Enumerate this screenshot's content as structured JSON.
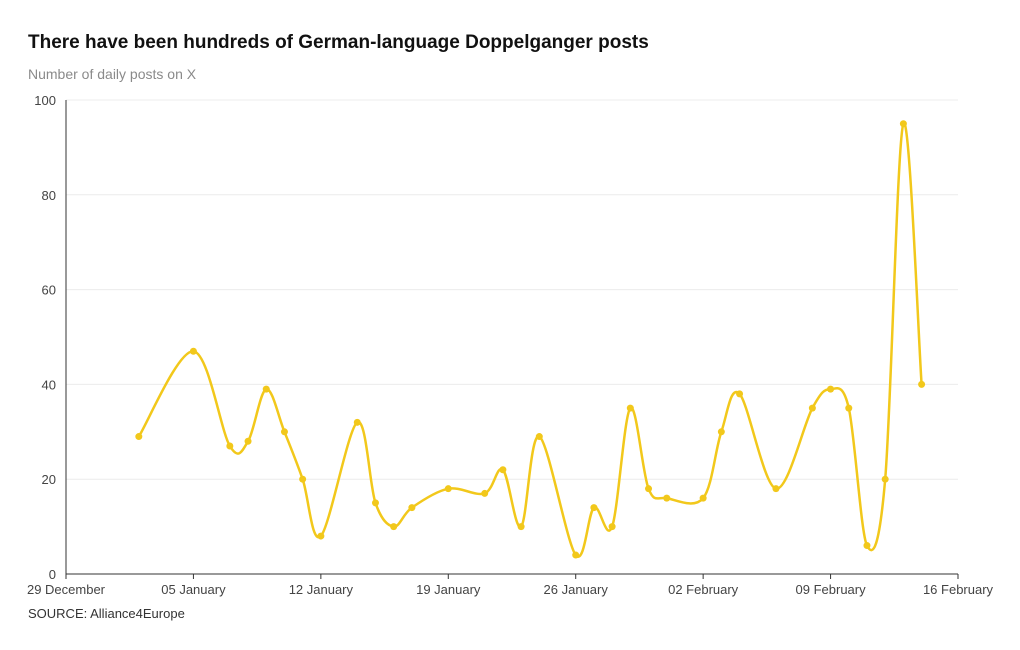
{
  "title": "There have been hundreds of German-language Doppelganger posts",
  "subtitle": "Number of daily posts on X",
  "source": "SOURCE: Alliance4Europe",
  "colors": {
    "line": "#f2c81b",
    "grid": "#ececec",
    "axis": "#333333"
  },
  "chart_data": {
    "type": "line",
    "title": "There have been hundreds of German-language Doppelganger posts",
    "ylabel": "Number of daily posts on X",
    "xlabel": "",
    "ylim": [
      0,
      100
    ],
    "yticks": [
      0,
      20,
      40,
      60,
      80,
      100
    ],
    "xlim": [
      "2023-12-29",
      "2024-02-16"
    ],
    "xticks": [
      {
        "date": "2023-12-29",
        "label": "29 December"
      },
      {
        "date": "2024-01-05",
        "label": "05 January"
      },
      {
        "date": "2024-01-12",
        "label": "12 January"
      },
      {
        "date": "2024-01-19",
        "label": "19 January"
      },
      {
        "date": "2024-01-26",
        "label": "26 January"
      },
      {
        "date": "2024-02-02",
        "label": "02 February"
      },
      {
        "date": "2024-02-09",
        "label": "09 February"
      },
      {
        "date": "2024-02-16",
        "label": "16 February"
      }
    ],
    "grid": true,
    "series": [
      {
        "points": [
          {
            "x": "2024-01-02",
            "y": 29
          },
          {
            "x": "2024-01-05",
            "y": 47
          },
          {
            "x": "2024-01-07",
            "y": 27
          },
          {
            "x": "2024-01-08",
            "y": 28
          },
          {
            "x": "2024-01-09",
            "y": 39
          },
          {
            "x": "2024-01-10",
            "y": 30
          },
          {
            "x": "2024-01-11",
            "y": 20
          },
          {
            "x": "2024-01-12",
            "y": 8
          },
          {
            "x": "2024-01-14",
            "y": 32
          },
          {
            "x": "2024-01-15",
            "y": 15
          },
          {
            "x": "2024-01-16",
            "y": 10
          },
          {
            "x": "2024-01-17",
            "y": 14
          },
          {
            "x": "2024-01-19",
            "y": 18
          },
          {
            "x": "2024-01-21",
            "y": 17
          },
          {
            "x": "2024-01-22",
            "y": 22
          },
          {
            "x": "2024-01-23",
            "y": 10
          },
          {
            "x": "2024-01-24",
            "y": 29
          },
          {
            "x": "2024-01-26",
            "y": 4
          },
          {
            "x": "2024-01-27",
            "y": 14
          },
          {
            "x": "2024-01-28",
            "y": 10
          },
          {
            "x": "2024-01-29",
            "y": 35
          },
          {
            "x": "2024-01-30",
            "y": 18
          },
          {
            "x": "2024-01-31",
            "y": 16
          },
          {
            "x": "2024-02-02",
            "y": 16
          },
          {
            "x": "2024-02-03",
            "y": 30
          },
          {
            "x": "2024-02-04",
            "y": 38
          },
          {
            "x": "2024-02-06",
            "y": 18
          },
          {
            "x": "2024-02-08",
            "y": 35
          },
          {
            "x": "2024-02-09",
            "y": 39
          },
          {
            "x": "2024-02-10",
            "y": 35
          },
          {
            "x": "2024-02-11",
            "y": 6
          },
          {
            "x": "2024-02-12",
            "y": 20
          },
          {
            "x": "2024-02-13",
            "y": 95
          },
          {
            "x": "2024-02-14",
            "y": 40
          }
        ]
      }
    ]
  }
}
